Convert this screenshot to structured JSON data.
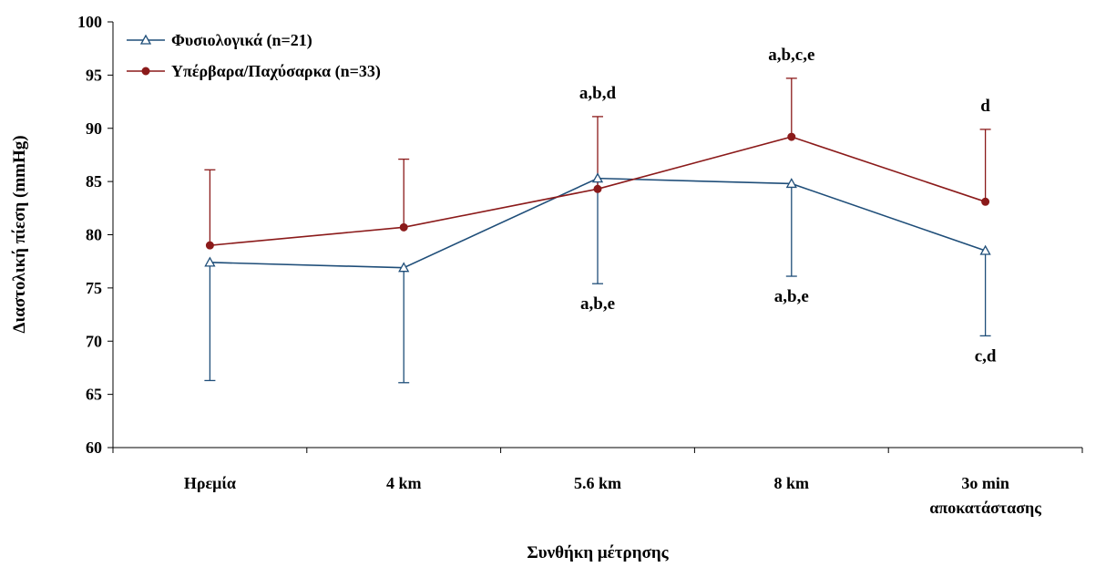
{
  "chart_data": {
    "type": "line",
    "xlabel": "Συνθήκη μέτρησης",
    "ylabel": "Διαστολική πίεση (mmHg)",
    "ylim": [
      60,
      100
    ],
    "yticks": [
      60,
      65,
      70,
      75,
      80,
      85,
      90,
      95,
      100
    ],
    "categories": [
      [
        "Ηρεμία"
      ],
      [
        "4 km"
      ],
      [
        "5.6 km"
      ],
      [
        "8 km"
      ],
      [
        "3o  min",
        "αποκατάστασης"
      ]
    ],
    "legend_position": "top-left",
    "series": [
      {
        "name": "Φυσιολογικά (n=21)",
        "color": "#1f4e79",
        "marker": "open-triangle",
        "values": [
          77.4,
          76.9,
          85.3,
          84.8,
          78.5
        ],
        "error": [
          11.1,
          10.8,
          9.9,
          8.7,
          8.0
        ],
        "error_direction": "down",
        "annotations": [
          "",
          "",
          "a,b,e",
          "a,b,e",
          "c,d"
        ]
      },
      {
        "name": "Υπέρβαρα/Παχύσαρκα (n=33)",
        "color": "#8b1a1a",
        "marker": "filled-circle",
        "values": [
          79.0,
          80.7,
          84.3,
          89.2,
          83.1
        ],
        "error": [
          7.1,
          6.4,
          6.8,
          5.5,
          6.8
        ],
        "error_direction": "up",
        "annotations": [
          "",
          "",
          "a,b,d",
          "a,b,c,e",
          "d"
        ]
      }
    ]
  }
}
